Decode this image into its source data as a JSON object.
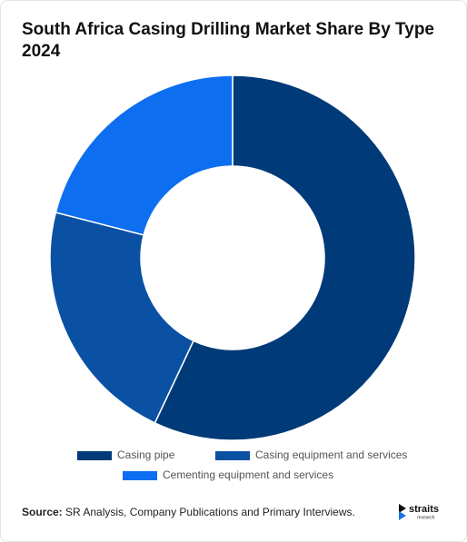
{
  "chart_data": {
    "type": "donut",
    "title": "South Africa Casing Drilling Market Share By Type 2024",
    "categories": [
      "Casing pipe",
      "Casing equipment and services",
      "Cementing equipment and services"
    ],
    "values": [
      57,
      22,
      21
    ],
    "colors": [
      "#003a78",
      "#0a50a3",
      "#0d6ef0"
    ]
  },
  "source": {
    "label": "Source:",
    "text": "SR Analysis, Company Publications and Primary Interviews."
  },
  "logo": {
    "name": "straits",
    "tagline": "research"
  }
}
